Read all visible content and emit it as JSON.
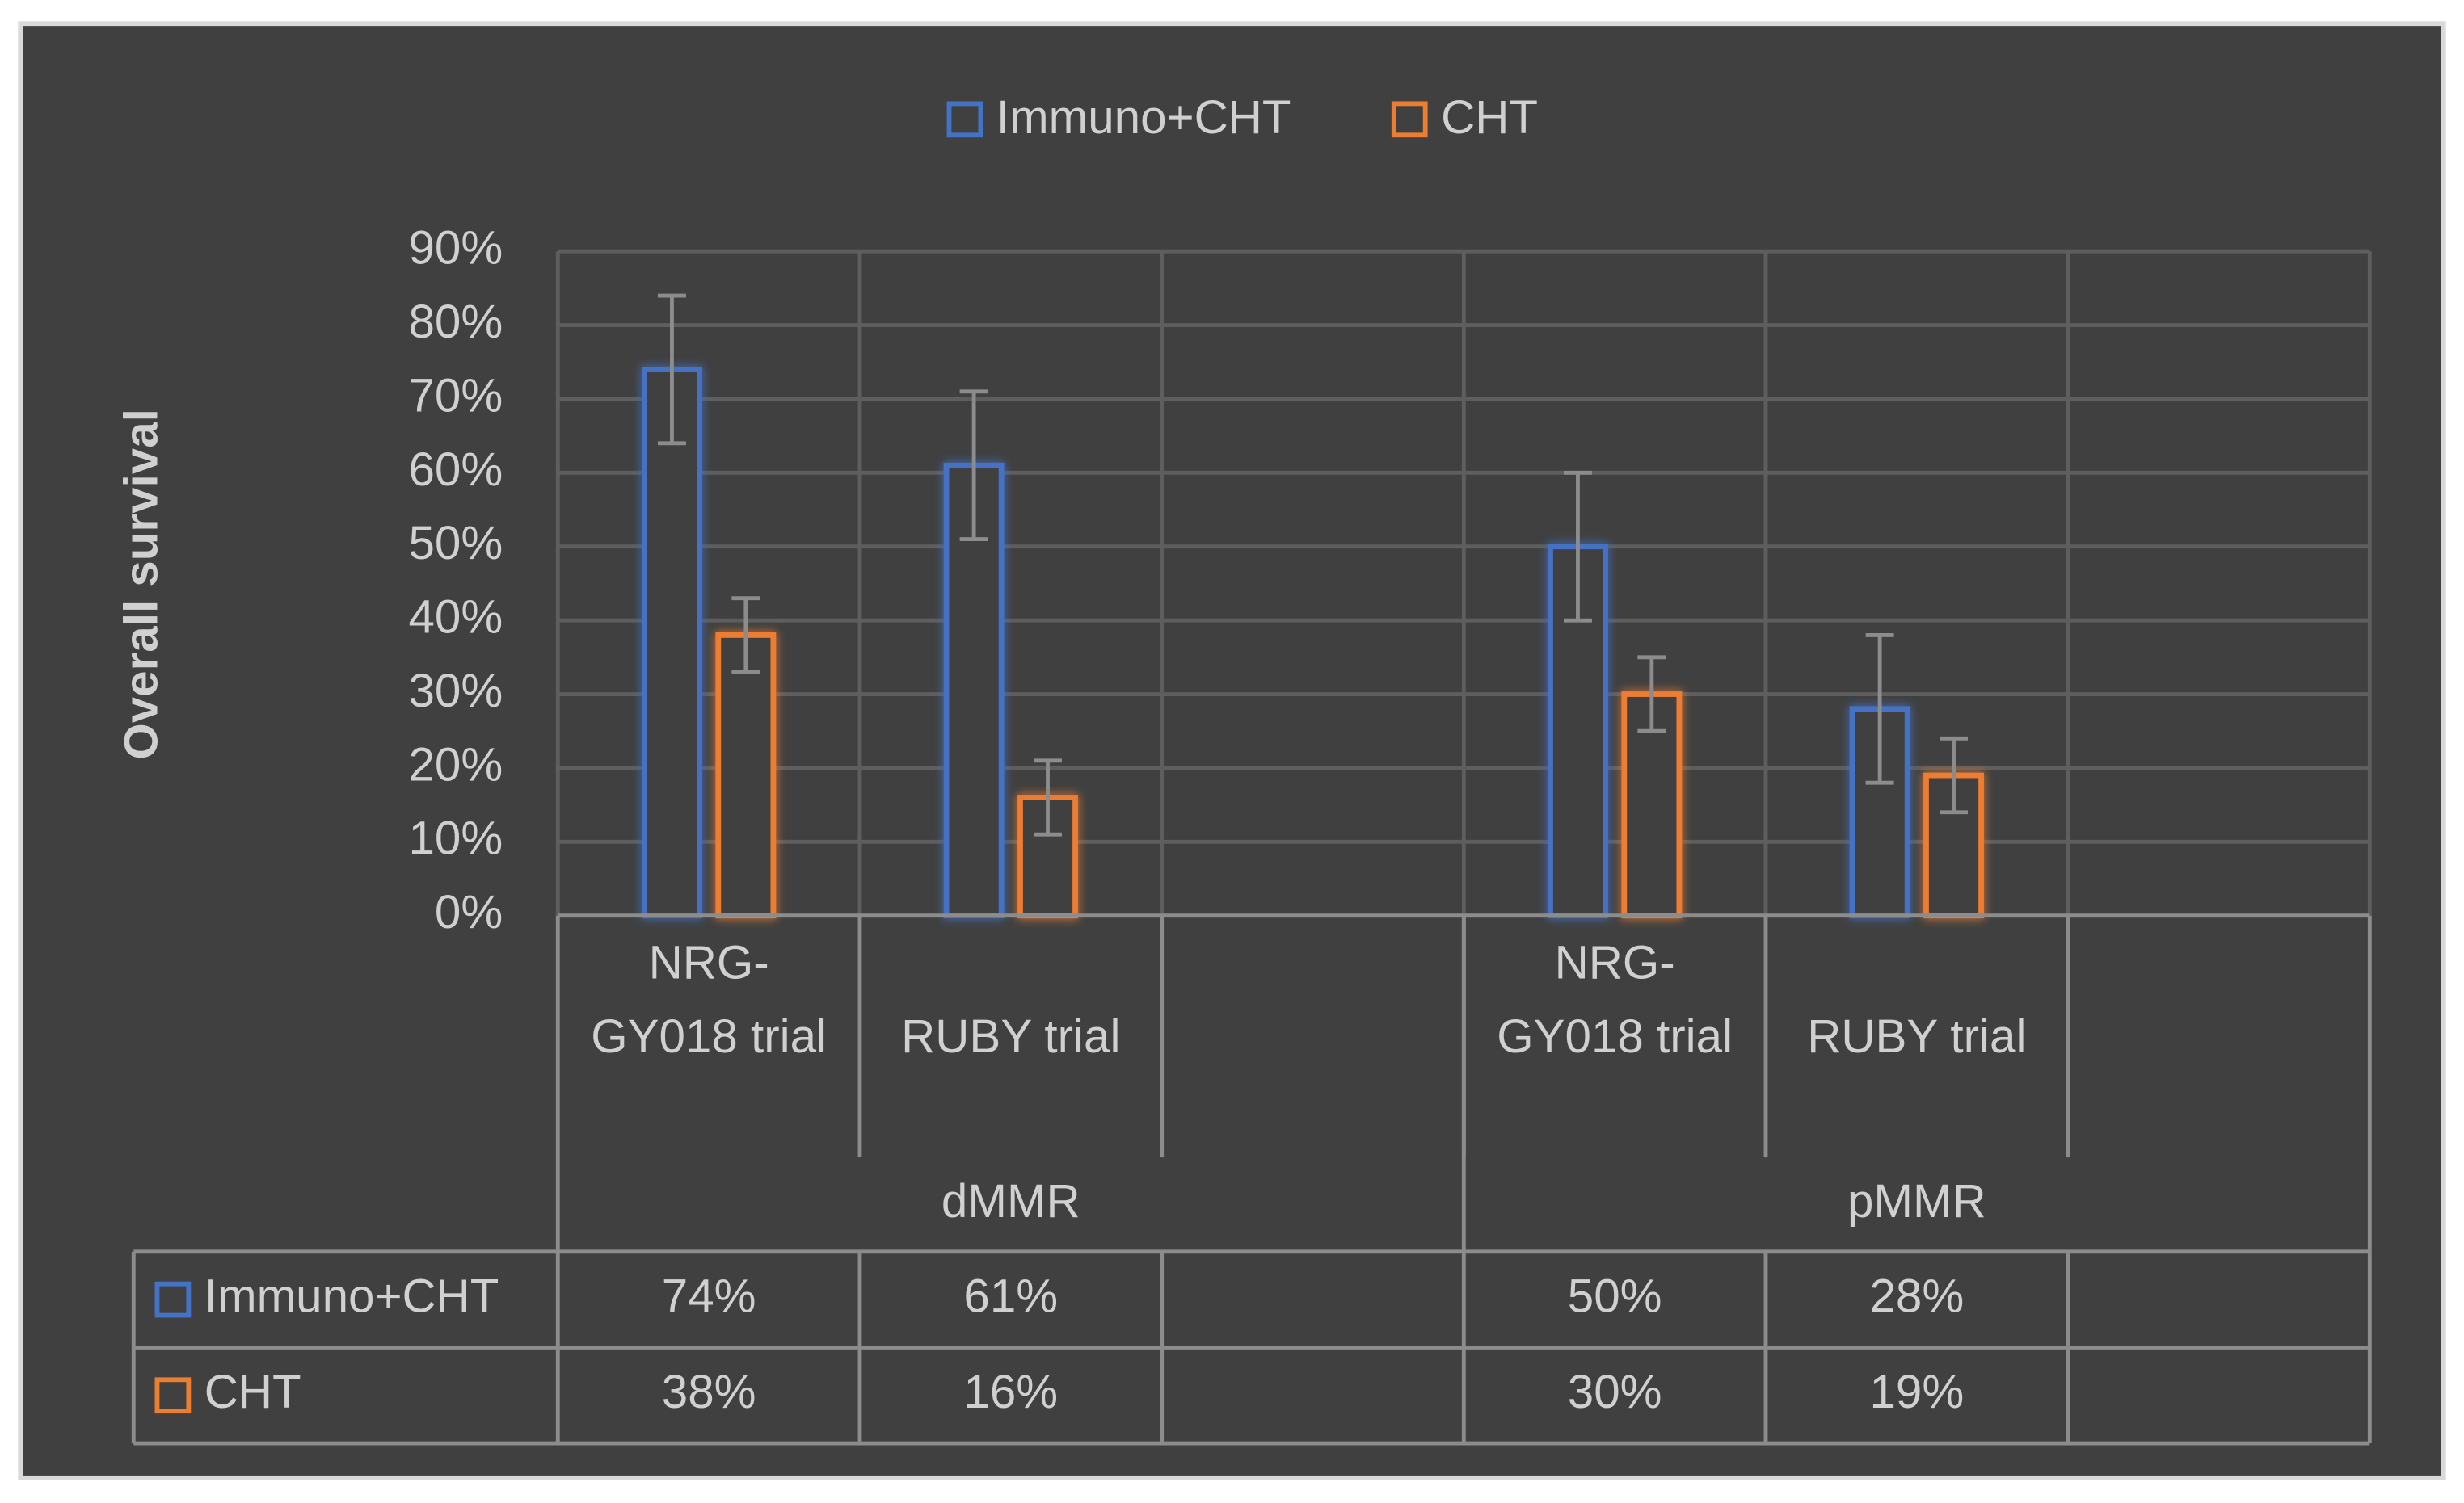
{
  "chart_data": {
    "type": "bar",
    "y_label": "Overall survival",
    "categories": [
      "NRG-GY018 trial",
      "RUBY trial",
      null,
      "NRG-GY018 trial",
      "RUBY trial",
      null
    ],
    "groups": [
      {
        "name": "dMMR",
        "span": 3
      },
      {
        "name": "pMMR",
        "span": 3
      }
    ],
    "series": [
      {
        "name": "Immuno+CHT",
        "color": "#4472c4",
        "values": [
          74,
          61,
          null,
          50,
          28,
          null
        ],
        "errors": [
          10,
          10,
          null,
          10,
          10,
          null
        ],
        "value_labels": [
          "74%",
          "61%",
          null,
          "50%",
          "28%",
          null
        ]
      },
      {
        "name": "CHT",
        "color": "#ed7d31",
        "values": [
          38,
          16,
          null,
          30,
          19,
          null
        ],
        "errors": [
          5,
          5,
          null,
          5,
          5,
          null
        ],
        "value_labels": [
          "38%",
          "16%",
          null,
          "30%",
          "19%",
          null
        ]
      }
    ],
    "ylim": [
      0,
      90
    ],
    "yticks": [
      {
        "value": 0,
        "label": "0%"
      },
      {
        "value": 10,
        "label": "10%"
      },
      {
        "value": 20,
        "label": "20%"
      },
      {
        "value": 30,
        "label": "30%"
      },
      {
        "value": 40,
        "label": "40%"
      },
      {
        "value": 50,
        "label": "50%"
      },
      {
        "value": 60,
        "label": "60%"
      },
      {
        "value": 70,
        "label": "70%"
      },
      {
        "value": 80,
        "label": "80%"
      },
      {
        "value": 90,
        "label": "90%"
      }
    ],
    "grid": true,
    "legend": "top",
    "data_table": true
  }
}
